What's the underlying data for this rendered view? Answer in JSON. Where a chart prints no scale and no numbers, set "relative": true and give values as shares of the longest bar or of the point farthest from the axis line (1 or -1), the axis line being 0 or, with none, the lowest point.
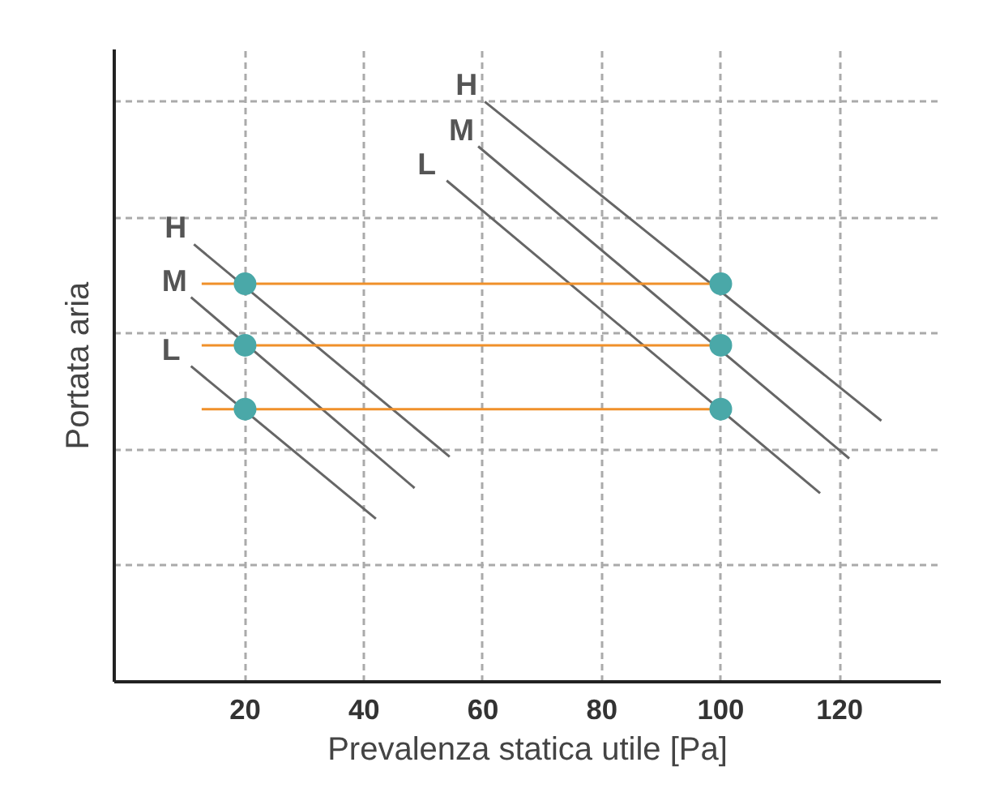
{
  "chart_data": {
    "type": "line",
    "xlabel": "Prevalenza statica utile [Pa]",
    "ylabel": "Portata aria",
    "relative": true,
    "xlim": [
      -2,
      137
    ],
    "xticks": [
      20,
      40,
      60,
      80,
      100,
      120
    ],
    "grid": true,
    "line_style": "solid",
    "series": [
      {
        "name": "H",
        "color": "#666666",
        "x": [
          11.4,
          54.4
        ],
        "values": [
          0.754,
          0.388
        ]
      },
      {
        "name": "M",
        "color": "#666666",
        "x": [
          10.9,
          48.5
        ],
        "values": [
          0.663,
          0.334
        ]
      },
      {
        "name": "L",
        "color": "#666666",
        "x": [
          10.9,
          42.0
        ],
        "values": [
          0.544,
          0.281
        ]
      },
      {
        "name": "H",
        "color": "#666666",
        "x": [
          60.3,
          127.0
        ],
        "values": [
          1.0,
          0.45
        ]
      },
      {
        "name": "M",
        "color": "#666666",
        "x": [
          59.2,
          121.6
        ],
        "values": [
          0.923,
          0.385
        ]
      },
      {
        "name": "L",
        "color": "#666666",
        "x": [
          53.9,
          116.7
        ],
        "values": [
          0.864,
          0.325
        ]
      },
      {
        "color": "#f0902a",
        "x": [
          12.7,
          100
        ],
        "values": [
          0.686,
          0.686
        ]
      },
      {
        "color": "#f0902a",
        "x": [
          12.7,
          100
        ],
        "values": [
          0.58,
          0.58
        ]
      },
      {
        "color": "#f0902a",
        "x": [
          12.7,
          100
        ],
        "values": [
          0.47,
          0.47
        ]
      },
      {
        "type": "scatter",
        "marker": "circle",
        "color": "#4aa8a8",
        "x": [
          20,
          20,
          20,
          100,
          100,
          100
        ],
        "values": [
          0.686,
          0.58,
          0.47,
          0.686,
          0.58,
          0.47
        ]
      }
    ]
  }
}
